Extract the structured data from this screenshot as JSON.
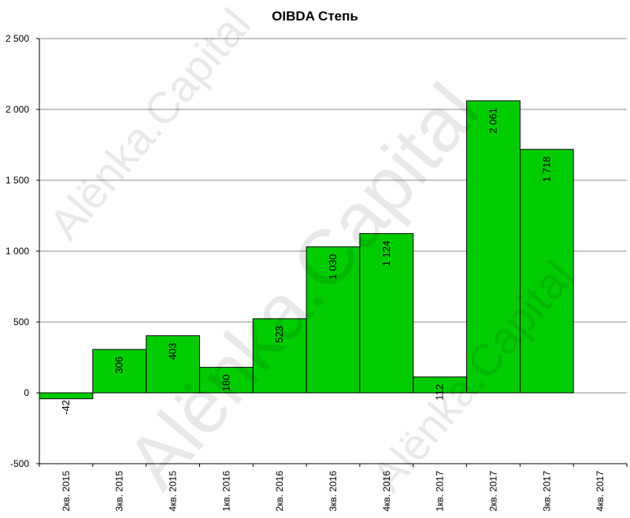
{
  "chart_data": {
    "type": "bar",
    "title": "OIBDA Степь",
    "categories": [
      "2кв. 2015",
      "3кв. 2015",
      "4кв. 2015",
      "1кв. 2016",
      "2кв. 2016",
      "3кв. 2016",
      "4кв. 2016",
      "1кв. 2017",
      "2кв. 2017",
      "3кв. 2017",
      "4кв. 2017"
    ],
    "values": [
      -42,
      306,
      403,
      180,
      523,
      1030,
      1124,
      112,
      2061,
      1718,
      null
    ],
    "data_labels": [
      "-42",
      "306",
      "403",
      "180",
      "523",
      "1 030",
      "1 124",
      "112",
      "2 061",
      "1 718",
      ""
    ],
    "ylim": [
      -500,
      2500
    ],
    "y_ticks": [
      -500,
      0,
      500,
      1000,
      1500,
      2000,
      2500
    ],
    "y_tick_labels": [
      "-500",
      "0",
      "500",
      "1 000",
      "1 500",
      "2 000",
      "2 500"
    ],
    "xlabel": "",
    "ylabel": "",
    "grid": "horizontal",
    "legend": "none",
    "bar_color": "#00cc00",
    "watermark_text": "Alënka.Capital"
  }
}
